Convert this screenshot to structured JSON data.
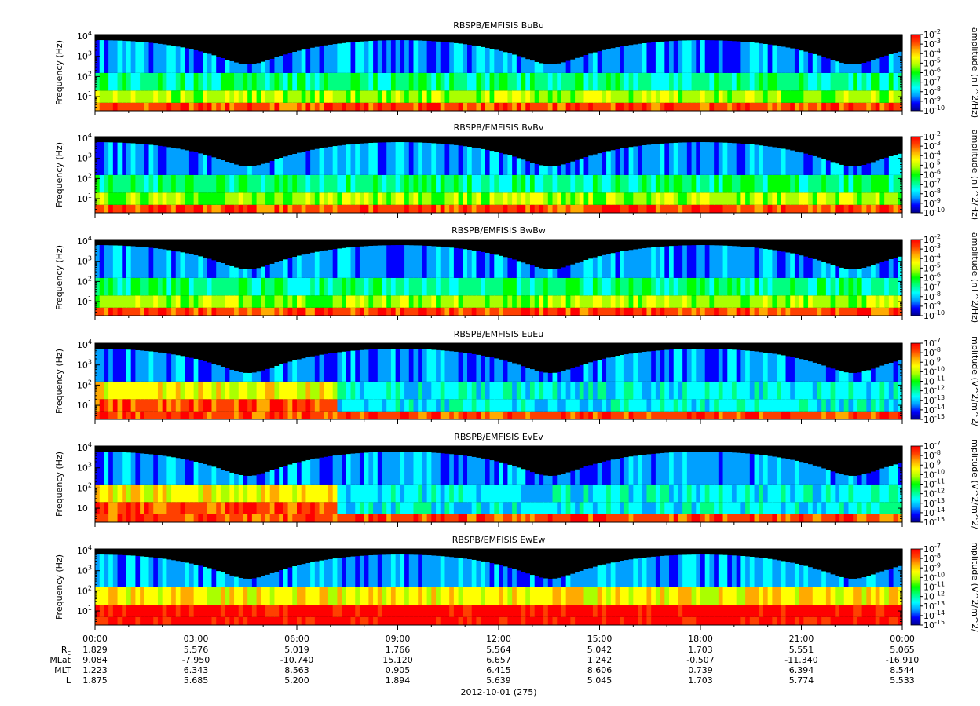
{
  "colors": {
    "background": "#000000",
    "colormap": [
      "#00008b",
      "#0000ff",
      "#00a0ff",
      "#00ffff",
      "#00ff80",
      "#00ff00",
      "#aaff00",
      "#ffff00",
      "#ffaa00",
      "#ff4000",
      "#ff0000"
    ]
  },
  "chart_data": [
    {
      "type": "heatmap",
      "title": "RBSPB/EMFISIS  BuBu",
      "ylabel": "Frequency (Hz)",
      "yscale": "log",
      "ylim": [
        2,
        12000
      ],
      "yticks": [
        "10^1",
        "10^2",
        "10^3",
        "10^4"
      ],
      "colorbar_label": "amplitude (nT^2/Hz)",
      "colorbar_scale": "log",
      "colorbar_range": [
        -10,
        -2
      ],
      "colorbar_ticks": [
        "10^-2",
        "10^-3",
        "10^-4",
        "10^-5",
        "10^-6",
        "10^-7",
        "10^-8",
        "10^-9",
        "10^-10"
      ]
    },
    {
      "type": "heatmap",
      "title": "RBSPB/EMFISIS  BvBv",
      "ylabel": "Frequency (Hz)",
      "yscale": "log",
      "ylim": [
        2,
        12000
      ],
      "yticks": [
        "10^1",
        "10^2",
        "10^3",
        "10^4"
      ],
      "colorbar_label": "amplitude (nT^2/Hz)",
      "colorbar_scale": "log",
      "colorbar_range": [
        -10,
        -2
      ],
      "colorbar_ticks": [
        "10^-2",
        "10^-3",
        "10^-4",
        "10^-5",
        "10^-6",
        "10^-7",
        "10^-8",
        "10^-9",
        "10^-10"
      ]
    },
    {
      "type": "heatmap",
      "title": "RBSPB/EMFISIS  BwBw",
      "ylabel": "Frequency (Hz)",
      "yscale": "log",
      "ylim": [
        2,
        12000
      ],
      "yticks": [
        "10^1",
        "10^2",
        "10^3",
        "10^4"
      ],
      "colorbar_label": "amplitude (nT^2/Hz)",
      "colorbar_scale": "log",
      "colorbar_range": [
        -10,
        -2
      ],
      "colorbar_ticks": [
        "10^-2",
        "10^-3",
        "10^-4",
        "10^-5",
        "10^-6",
        "10^-7",
        "10^-8",
        "10^-9",
        "10^-10"
      ]
    },
    {
      "type": "heatmap",
      "title": "RBSPB/EMFISIS  EuEu",
      "ylabel": "Frequency (Hz)",
      "yscale": "log",
      "ylim": [
        2,
        12000
      ],
      "yticks": [
        "10^1",
        "10^2",
        "10^3",
        "10^4"
      ],
      "colorbar_label": "mplitude (V^2/m^2/",
      "colorbar_scale": "log",
      "colorbar_range": [
        -15,
        -7
      ],
      "colorbar_ticks": [
        "10^-7",
        "10^-8",
        "10^-9",
        "10^-10",
        "10^-11",
        "10^-12",
        "10^-13",
        "10^-14",
        "10^-15"
      ]
    },
    {
      "type": "heatmap",
      "title": "RBSPB/EMFISIS  EvEv",
      "ylabel": "Frequency (Hz)",
      "yscale": "log",
      "ylim": [
        2,
        12000
      ],
      "yticks": [
        "10^1",
        "10^2",
        "10^3",
        "10^4"
      ],
      "colorbar_label": "mplitude (V^2/m^2/",
      "colorbar_scale": "log",
      "colorbar_range": [
        -15,
        -7
      ],
      "colorbar_ticks": [
        "10^-7",
        "10^-8",
        "10^-9",
        "10^-10",
        "10^-11",
        "10^-12",
        "10^-13",
        "10^-14",
        "10^-15"
      ]
    },
    {
      "type": "heatmap",
      "title": "RBSPB/EMFISIS  EwEw",
      "ylabel": "Frequency (Hz)",
      "yscale": "log",
      "ylim": [
        2,
        12000
      ],
      "yticks": [
        "10^1",
        "10^2",
        "10^3",
        "10^4"
      ],
      "colorbar_label": "mplitude (V^2/m^2/",
      "colorbar_scale": "log",
      "colorbar_range": [
        -15,
        -7
      ],
      "colorbar_ticks": [
        "10^-7",
        "10^-8",
        "10^-9",
        "10^-10",
        "10^-11",
        "10^-12",
        "10^-13",
        "10^-14",
        "10^-15"
      ]
    }
  ],
  "xaxis": {
    "ticks": [
      "00:00",
      "03:00",
      "06:00",
      "09:00",
      "12:00",
      "15:00",
      "18:00",
      "21:00",
      "00:00"
    ],
    "rows": [
      {
        "label": "R",
        "sub": "E",
        "values": [
          "1.829",
          "5.576",
          "5.019",
          "1.766",
          "5.564",
          "5.042",
          "1.703",
          "5.551",
          "5.065"
        ]
      },
      {
        "label": "MLat",
        "values": [
          "9.084",
          "-7.950",
          "-10.740",
          "15.120",
          "6.657",
          "1.242",
          "-0.507",
          "-11.340",
          "-16.910"
        ]
      },
      {
        "label": "MLT",
        "values": [
          "1.223",
          "6.343",
          "8.563",
          "0.905",
          "6.415",
          "8.606",
          "0.739",
          "6.394",
          "8.544"
        ]
      },
      {
        "label": "L",
        "values": [
          "1.875",
          "5.685",
          "5.200",
          "1.894",
          "5.639",
          "5.045",
          "1.703",
          "5.774",
          "5.533"
        ]
      }
    ],
    "date": "2012-10-01 (275)"
  }
}
